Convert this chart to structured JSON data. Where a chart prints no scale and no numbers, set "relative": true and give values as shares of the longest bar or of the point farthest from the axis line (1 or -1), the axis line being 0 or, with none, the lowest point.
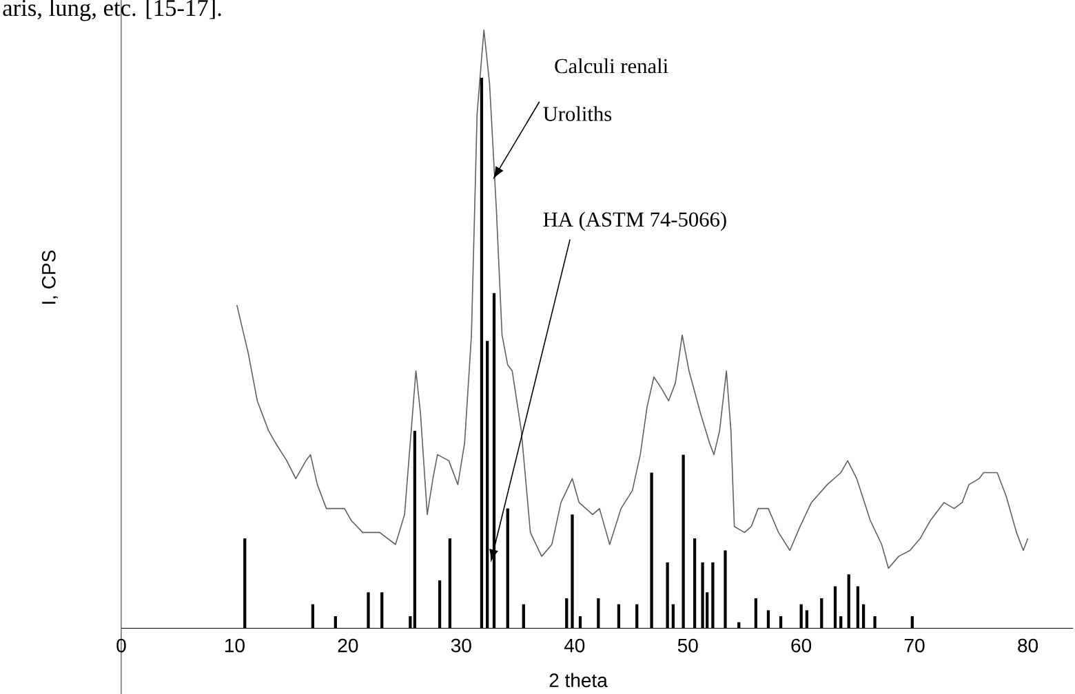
{
  "chart_data": {
    "type": "line",
    "relative": true,
    "xlabel": "2 theta",
    "ylabel": "I, CPS",
    "xlim": [
      0,
      84
    ],
    "xticks": [
      0,
      10,
      20,
      30,
      40,
      50,
      60,
      70,
      80
    ],
    "annotations": [
      "aris, lung, etc. [15-17].",
      "Calculi renali",
      {
        "text": "Uroliths",
        "x": 32.8,
        "y": 0.75
      },
      {
        "text": "HA (ASTM 74-5066)",
        "x": 32.6,
        "y": 0.11
      }
    ],
    "series": [
      {
        "color": "#606060",
        "x": [
          10.2,
          11.2,
          12.0,
          13.0,
          13.6,
          14.6,
          15.4,
          16.3,
          16.7,
          17.3,
          18.1,
          19.7,
          20.3,
          21.3,
          22.8,
          24.2,
          25.0,
          25.5,
          26.0,
          26.4,
          27.0,
          27.5,
          27.9,
          28.9,
          29.7,
          30.3,
          30.9,
          31.4,
          32.0,
          32.5,
          33.1,
          33.6,
          34.1,
          34.5,
          35.3,
          36.1,
          37.1,
          38.0,
          38.8,
          39.8,
          40.4,
          41.0,
          41.6,
          42.2,
          43.1,
          44.1,
          45.1,
          45.8,
          46.4,
          47.0,
          47.7,
          48.3,
          48.9,
          49.5,
          50.1,
          51.1,
          51.9,
          52.3,
          52.8,
          53.4,
          53.8,
          54.1,
          55.0,
          55.6,
          56.2,
          57.1,
          58.0,
          59.0,
          59.9,
          60.9,
          62.3,
          63.5,
          64.1,
          64.9,
          66.1,
          67.1,
          67.7,
          68.6,
          69.6,
          70.5,
          71.4,
          72.6,
          73.5,
          74.2,
          74.8,
          75.7,
          76.1,
          77.3,
          78.1,
          79.0,
          79.6,
          80.0
        ],
        "values": [
          0.54,
          0.46,
          0.38,
          0.33,
          0.31,
          0.28,
          0.25,
          0.28,
          0.29,
          0.24,
          0.2,
          0.2,
          0.18,
          0.16,
          0.16,
          0.14,
          0.19,
          0.31,
          0.43,
          0.36,
          0.19,
          0.25,
          0.29,
          0.28,
          0.24,
          0.31,
          0.49,
          0.86,
          1.0,
          0.91,
          0.7,
          0.49,
          0.44,
          0.43,
          0.33,
          0.16,
          0.12,
          0.14,
          0.21,
          0.25,
          0.21,
          0.2,
          0.19,
          0.2,
          0.14,
          0.2,
          0.23,
          0.29,
          0.37,
          0.42,
          0.4,
          0.38,
          0.41,
          0.49,
          0.43,
          0.36,
          0.31,
          0.29,
          0.33,
          0.43,
          0.33,
          0.17,
          0.16,
          0.17,
          0.2,
          0.2,
          0.16,
          0.13,
          0.17,
          0.21,
          0.24,
          0.26,
          0.28,
          0.25,
          0.18,
          0.14,
          0.1,
          0.12,
          0.13,
          0.15,
          0.18,
          0.21,
          0.2,
          0.21,
          0.24,
          0.25,
          0.26,
          0.26,
          0.22,
          0.16,
          0.13,
          0.15
        ]
      },
      {
        "type": "bar",
        "color": "#000000",
        "x": [
          10.9,
          16.9,
          18.9,
          21.8,
          23.0,
          25.5,
          25.9,
          28.1,
          29.0,
          31.8,
          32.3,
          32.9,
          34.1,
          35.5,
          39.3,
          39.8,
          40.5,
          42.1,
          43.9,
          45.5,
          46.8,
          48.2,
          48.7,
          49.6,
          50.6,
          51.3,
          51.7,
          52.2,
          53.3,
          54.5,
          56.0,
          57.1,
          58.2,
          60.0,
          60.5,
          61.8,
          63.0,
          63.5,
          64.2,
          65.0,
          65.5,
          66.5,
          69.8
        ],
        "values": [
          0.15,
          0.04,
          0.02,
          0.06,
          0.06,
          0.02,
          0.33,
          0.08,
          0.15,
          0.92,
          0.48,
          0.56,
          0.2,
          0.04,
          0.05,
          0.19,
          0.02,
          0.05,
          0.04,
          0.04,
          0.26,
          0.11,
          0.04,
          0.29,
          0.15,
          0.11,
          0.06,
          0.11,
          0.13,
          0.01,
          0.05,
          0.03,
          0.02,
          0.04,
          0.03,
          0.05,
          0.07,
          0.02,
          0.09,
          0.07,
          0.04,
          0.02,
          0.02
        ]
      }
    ]
  }
}
